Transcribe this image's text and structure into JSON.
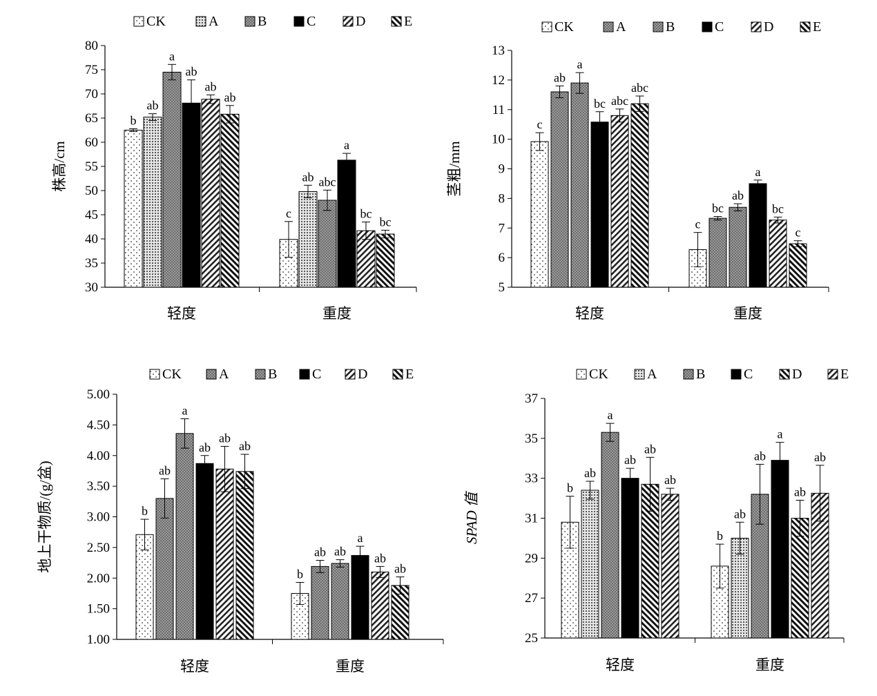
{
  "legend_items": [
    "CK",
    "A",
    "B",
    "C",
    "D",
    "E"
  ],
  "chart_data": [
    {
      "type": "bar",
      "ylabel": "株高/cm",
      "ylim": [
        30,
        80
      ],
      "yticks": [
        "30",
        "35",
        "40",
        "45",
        "50",
        "55",
        "60",
        "65",
        "70",
        "75",
        "80"
      ],
      "categories": [
        "轻度",
        "重度"
      ],
      "legend": [
        "CK",
        "A",
        "B",
        "C",
        "D",
        "E"
      ],
      "patterns": [
        "dots",
        "dense-dots",
        "gray-dots",
        "solid",
        "hatch-fwd",
        "hatch-bwd"
      ],
      "series": [
        {
          "name": "CK",
          "values": [
            62.5,
            39.9
          ],
          "errors": [
            0.3,
            3.7
          ],
          "labels": [
            "b",
            "c"
          ]
        },
        {
          "name": "A",
          "values": [
            65.2,
            49.8
          ],
          "errors": [
            0.7,
            1.3
          ],
          "labels": [
            "ab",
            "ab"
          ]
        },
        {
          "name": "B",
          "values": [
            74.5,
            48.0
          ],
          "errors": [
            1.6,
            2.1
          ],
          "labels": [
            "a",
            "abc"
          ]
        },
        {
          "name": "C",
          "values": [
            68.1,
            56.3
          ],
          "errors": [
            4.8,
            1.4
          ],
          "labels": [
            "ab",
            "a"
          ]
        },
        {
          "name": "D",
          "values": [
            68.9,
            41.7
          ],
          "errors": [
            0.9,
            1.8
          ],
          "labels": [
            "ab",
            "bc"
          ]
        },
        {
          "name": "E",
          "values": [
            65.8,
            41.0
          ],
          "errors": [
            1.8,
            0.8
          ],
          "labels": [
            "ab",
            "bc"
          ]
        }
      ]
    },
    {
      "type": "bar",
      "ylabel": "茎粗/mm",
      "ylim": [
        5,
        13
      ],
      "yticks": [
        "5",
        "6",
        "7",
        "8",
        "9",
        "10",
        "11",
        "12",
        "13"
      ],
      "categories": [
        "轻度",
        "重度"
      ],
      "legend": [
        "CK",
        "A",
        "B",
        "C",
        "D",
        "E"
      ],
      "patterns": [
        "dots",
        "gray-dots",
        "gray-dots",
        "solid",
        "hatch-fwd",
        "hatch-bwd"
      ],
      "series": [
        {
          "name": "CK",
          "values": [
            9.92,
            6.27
          ],
          "errors": [
            0.3,
            0.58
          ],
          "labels": [
            "c",
            "c"
          ]
        },
        {
          "name": "A",
          "values": [
            11.6,
            7.33
          ],
          "errors": [
            0.2,
            0.06
          ],
          "labels": [
            "ab",
            "bc"
          ]
        },
        {
          "name": "B",
          "values": [
            11.9,
            7.7
          ],
          "errors": [
            0.35,
            0.12
          ],
          "labels": [
            "a",
            "ab"
          ]
        },
        {
          "name": "C",
          "values": [
            10.58,
            8.5
          ],
          "errors": [
            0.35,
            0.12
          ],
          "labels": [
            "bc",
            "a"
          ]
        },
        {
          "name": "D",
          "values": [
            10.8,
            7.27
          ],
          "errors": [
            0.22,
            0.1
          ],
          "labels": [
            "abc",
            "bc"
          ]
        },
        {
          "name": "E",
          "values": [
            11.2,
            6.47
          ],
          "errors": [
            0.26,
            0.1
          ],
          "labels": [
            "abc",
            "c"
          ]
        }
      ]
    },
    {
      "type": "bar",
      "ylabel": "地上干物质/(g/盆)",
      "ylim": [
        1,
        5
      ],
      "yticks": [
        "1.00",
        "1.50",
        "2.00",
        "2.50",
        "3.00",
        "3.50",
        "4.00",
        "4.50",
        "5.00"
      ],
      "categories": [
        "轻度",
        "重度"
      ],
      "legend": [
        "CK",
        "A",
        "B",
        "C",
        "D",
        "E"
      ],
      "patterns": [
        "dots",
        "gray-dots",
        "gray-dots",
        "solid",
        "hatch-fwd",
        "hatch-bwd"
      ],
      "series": [
        {
          "name": "CK",
          "values": [
            2.71,
            1.75
          ],
          "errors": [
            0.25,
            0.18
          ],
          "labels": [
            "b",
            "b"
          ]
        },
        {
          "name": "A",
          "values": [
            3.3,
            2.19
          ],
          "errors": [
            0.32,
            0.1
          ],
          "labels": [
            "ab",
            "ab"
          ]
        },
        {
          "name": "B",
          "values": [
            4.36,
            2.24
          ],
          "errors": [
            0.24,
            0.06
          ],
          "labels": [
            "a",
            "ab"
          ]
        },
        {
          "name": "C",
          "values": [
            3.87,
            2.37
          ],
          "errors": [
            0.13,
            0.15
          ],
          "labels": [
            "ab",
            "a"
          ]
        },
        {
          "name": "D",
          "values": [
            3.78,
            2.1
          ],
          "errors": [
            0.37,
            0.09
          ],
          "labels": [
            "ab",
            "ab"
          ]
        },
        {
          "name": "E",
          "values": [
            3.74,
            1.88
          ],
          "errors": [
            0.28,
            0.14
          ],
          "labels": [
            "ab",
            "ab"
          ]
        }
      ]
    },
    {
      "type": "bar",
      "ylabel": "SPAD 值",
      "ylim": [
        25,
        37
      ],
      "yticks": [
        "25",
        "27",
        "29",
        "31",
        "33",
        "35",
        "37"
      ],
      "categories": [
        "轻度",
        "重度"
      ],
      "legend": [
        "CK",
        "A",
        "B",
        "C",
        "D",
        "E"
      ],
      "patterns": [
        "dots",
        "dense-dots",
        "gray-dots",
        "solid",
        "hatch-bwd",
        "hatch-fwd"
      ],
      "series": [
        {
          "name": "CK",
          "values": [
            30.8,
            28.6
          ],
          "errors": [
            1.3,
            1.1
          ],
          "labels": [
            "b",
            "b"
          ]
        },
        {
          "name": "A",
          "values": [
            32.4,
            30.0
          ],
          "errors": [
            0.45,
            0.8
          ],
          "labels": [
            "ab",
            "ab"
          ]
        },
        {
          "name": "B",
          "values": [
            35.3,
            32.2
          ],
          "errors": [
            0.45,
            1.5
          ],
          "labels": [
            "a",
            "ab"
          ]
        },
        {
          "name": "C",
          "values": [
            33.0,
            33.9
          ],
          "errors": [
            0.5,
            0.9
          ],
          "labels": [
            "ab",
            "a"
          ]
        },
        {
          "name": "D",
          "values": [
            32.7,
            31.0
          ],
          "errors": [
            1.35,
            0.9
          ],
          "labels": [
            "ab",
            "ab"
          ]
        },
        {
          "name": "E",
          "values": [
            32.2,
            32.25
          ],
          "errors": [
            0.3,
            1.4
          ],
          "labels": [
            "ab",
            "ab"
          ]
        }
      ]
    }
  ]
}
